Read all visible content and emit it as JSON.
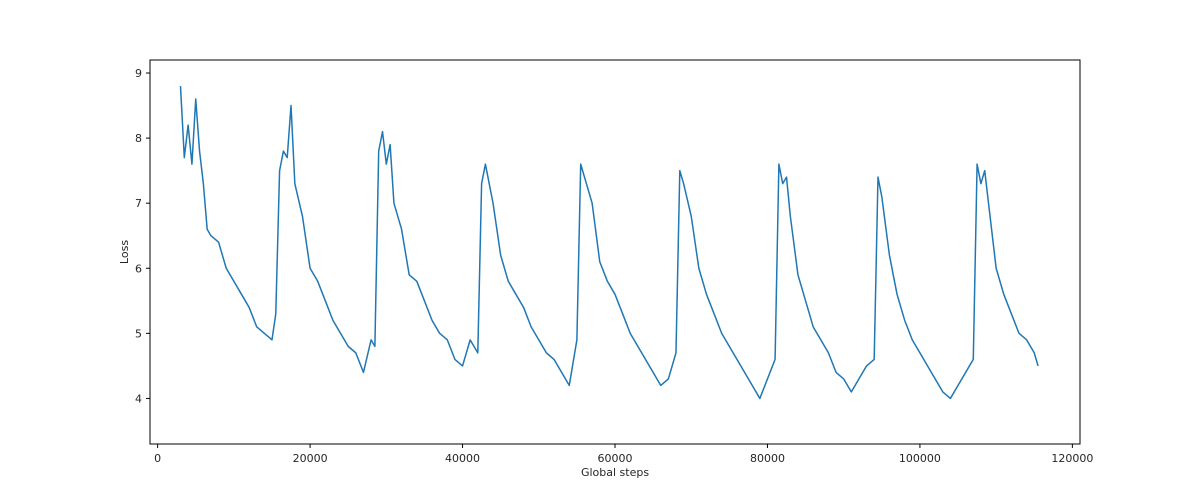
{
  "chart_data": {
    "type": "line",
    "xlabel": "Global steps",
    "ylabel": "Loss",
    "xlim": [
      -1000,
      121000
    ],
    "ylim": [
      3.3,
      9.2
    ],
    "xticks": [
      0,
      20000,
      40000,
      60000,
      80000,
      100000,
      120000
    ],
    "xtick_labels": [
      "0",
      "20000",
      "40000",
      "60000",
      "80000",
      "100000",
      "120000"
    ],
    "yticks": [
      4,
      5,
      6,
      7,
      8,
      9
    ],
    "ytick_labels": [
      "4",
      "5",
      "6",
      "7",
      "8",
      "9"
    ],
    "grid": false,
    "legend": "none",
    "series": [
      {
        "color": "#1f77b4",
        "x": [
          3000,
          3500,
          4000,
          4500,
          5000,
          5500,
          6000,
          6500,
          7000,
          8000,
          9000,
          10000,
          11000,
          12000,
          13000,
          14000,
          15000,
          15500,
          16000,
          16500,
          17000,
          17500,
          18000,
          19000,
          20000,
          21000,
          22000,
          23000,
          24000,
          25000,
          26000,
          27000,
          28000,
          28500,
          29000,
          29500,
          30000,
          30500,
          31000,
          32000,
          33000,
          34000,
          35000,
          36000,
          37000,
          38000,
          39000,
          40000,
          41000,
          42000,
          42500,
          43000,
          44000,
          45000,
          46000,
          47000,
          48000,
          49000,
          50000,
          51000,
          52000,
          53000,
          54000,
          55000,
          55500,
          56000,
          56500,
          57000,
          58000,
          59000,
          60000,
          61000,
          62000,
          63000,
          64000,
          65000,
          66000,
          67000,
          68000,
          68500,
          69000,
          70000,
          71000,
          72000,
          73000,
          74000,
          75000,
          76000,
          77000,
          78000,
          79000,
          80000,
          81000,
          81500,
          82000,
          82500,
          83000,
          84000,
          85000,
          86000,
          87000,
          88000,
          89000,
          90000,
          91000,
          92000,
          93000,
          94000,
          94500,
          95000,
          96000,
          97000,
          98000,
          99000,
          100000,
          101000,
          102000,
          103000,
          104000,
          105000,
          106000,
          107000,
          107500,
          108000,
          108500,
          109000,
          110000,
          111000,
          112000,
          113000,
          114000,
          115000,
          115500
        ],
        "y": [
          8.8,
          7.7,
          8.2,
          7.6,
          8.6,
          7.8,
          7.3,
          6.6,
          6.5,
          6.4,
          6.0,
          5.8,
          5.6,
          5.4,
          5.1,
          5.0,
          4.9,
          5.3,
          7.5,
          7.8,
          7.7,
          8.5,
          7.3,
          6.8,
          6.0,
          5.8,
          5.5,
          5.2,
          5.0,
          4.8,
          4.7,
          4.4,
          4.9,
          4.8,
          7.8,
          8.1,
          7.6,
          7.9,
          7.0,
          6.6,
          5.9,
          5.8,
          5.5,
          5.2,
          5.0,
          4.9,
          4.6,
          4.5,
          4.9,
          4.7,
          7.3,
          7.6,
          7.0,
          6.2,
          5.8,
          5.6,
          5.4,
          5.1,
          4.9,
          4.7,
          4.6,
          4.4,
          4.2,
          4.9,
          7.6,
          7.4,
          7.2,
          7.0,
          6.1,
          5.8,
          5.6,
          5.3,
          5.0,
          4.8,
          4.6,
          4.4,
          4.2,
          4.3,
          4.7,
          7.5,
          7.3,
          6.8,
          6.0,
          5.6,
          5.3,
          5.0,
          4.8,
          4.6,
          4.4,
          4.2,
          4.0,
          4.3,
          4.6,
          7.6,
          7.3,
          7.4,
          6.8,
          5.9,
          5.5,
          5.1,
          4.9,
          4.7,
          4.4,
          4.3,
          4.1,
          4.3,
          4.5,
          4.6,
          7.4,
          7.1,
          6.2,
          5.6,
          5.2,
          4.9,
          4.7,
          4.5,
          4.3,
          4.1,
          4.0,
          4.2,
          4.4,
          4.6,
          7.6,
          7.3,
          7.5,
          7.0,
          6.0,
          5.6,
          5.3,
          5.0,
          4.9,
          4.7,
          4.5
        ]
      }
    ]
  }
}
